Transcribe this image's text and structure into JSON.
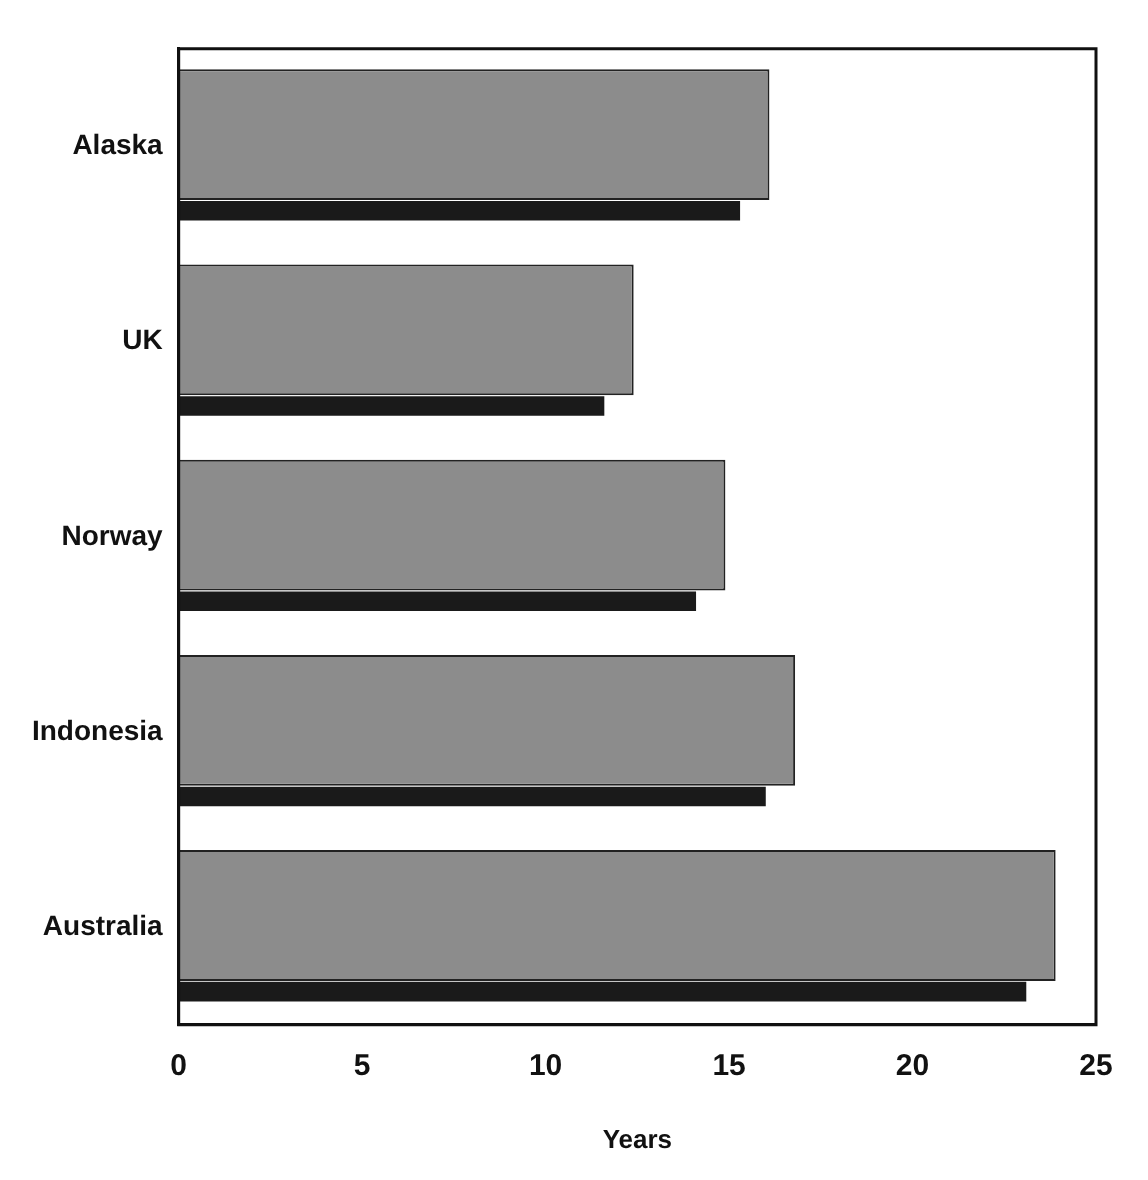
{
  "chart_data": {
    "type": "bar",
    "orientation": "horizontal",
    "xlabel": "Years",
    "categories": [
      "Alaska",
      "UK",
      "Norway",
      "Indonesia",
      "Australia"
    ],
    "series": [
      {
        "color": "#8c8c8c",
        "values": [
          16.1,
          12.4,
          14.9,
          16.8,
          23.9
        ]
      },
      {
        "color": "#1a1a1a",
        "values": [
          15.3,
          11.6,
          14.1,
          16.0,
          23.1
        ]
      }
    ],
    "xlim": [
      0,
      25
    ],
    "xticks": [
      0,
      5,
      10,
      15,
      20,
      25
    ],
    "grid": false,
    "legend": false
  }
}
